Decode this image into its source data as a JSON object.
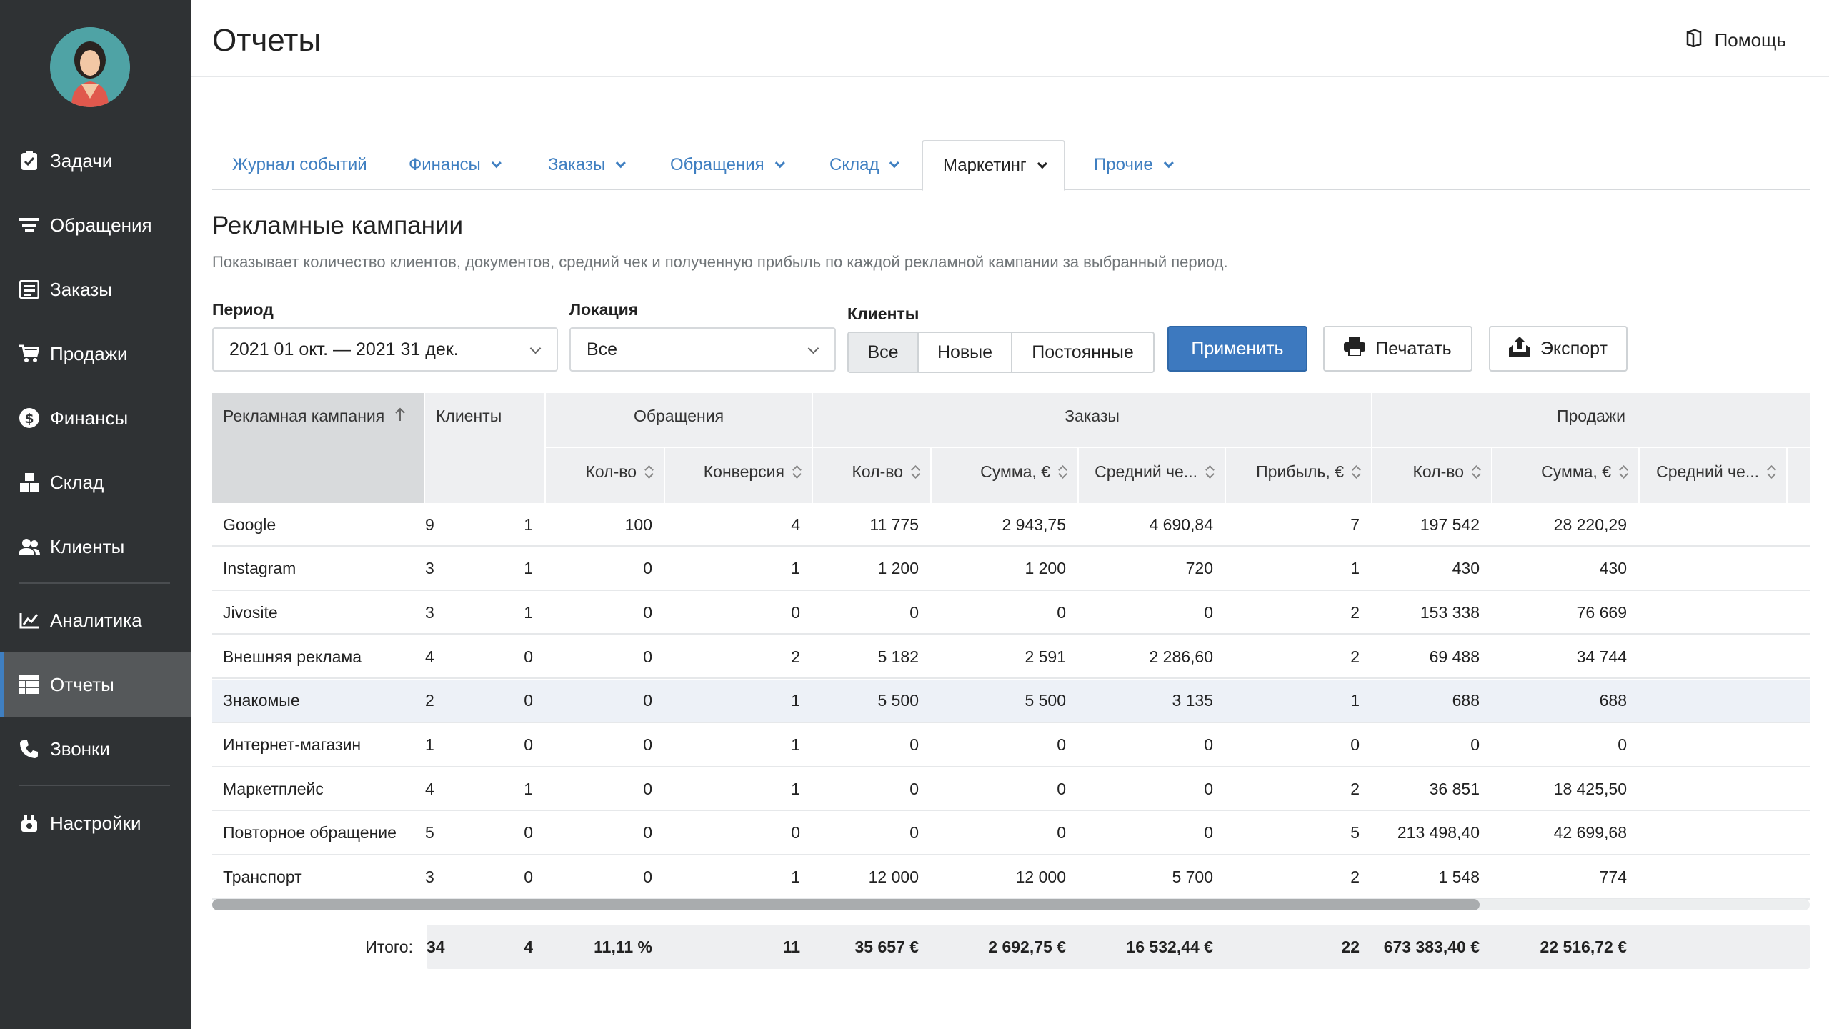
{
  "header": {
    "title": "Отчеты",
    "help_label": "Помощь"
  },
  "sidebar": {
    "items": [
      {
        "label": "Задачи",
        "icon": "tasks-icon"
      },
      {
        "label": "Обращения",
        "icon": "inbox-icon"
      },
      {
        "label": "Заказы",
        "icon": "orders-icon"
      },
      {
        "label": "Продажи",
        "icon": "cart-icon"
      },
      {
        "label": "Финансы",
        "icon": "dollar-icon"
      },
      {
        "label": "Склад",
        "icon": "boxes-icon"
      },
      {
        "label": "Клиенты",
        "icon": "users-icon"
      },
      {
        "label": "Аналитика",
        "icon": "chart-icon"
      },
      {
        "label": "Отчеты",
        "icon": "table-icon",
        "active": true
      },
      {
        "label": "Звонки",
        "icon": "phone-icon"
      },
      {
        "label": "Настройки",
        "icon": "settings-icon"
      }
    ]
  },
  "tabs": [
    {
      "label": "Журнал событий",
      "dropdown": false
    },
    {
      "label": "Финансы",
      "dropdown": true
    },
    {
      "label": "Заказы",
      "dropdown": true
    },
    {
      "label": "Обращения",
      "dropdown": true
    },
    {
      "label": "Склад",
      "dropdown": true
    },
    {
      "label": "Маркетинг",
      "dropdown": true,
      "active": true
    },
    {
      "label": "Прочие",
      "dropdown": true
    }
  ],
  "report": {
    "title": "Рекламные кампании",
    "description": "Показывает количество клиентов, документов, средний чек и полученную прибыль по каждой рекламной кампании за выбранный период."
  },
  "filters": {
    "period_label": "Период",
    "period_value": "2021 01 окт. — 2021 31 дек.",
    "location_label": "Локация",
    "location_value": "Все",
    "clients_label": "Клиенты",
    "clients_options": [
      "Все",
      "Новые",
      "Постоянные"
    ],
    "clients_selected": "Все",
    "apply_label": "Применить",
    "print_label": "Печатать",
    "export_label": "Экспорт"
  },
  "table": {
    "group_headers": {
      "campaign": "Рекламная кампания",
      "clients": "Клиенты",
      "appeals": "Обращения",
      "orders": "Заказы",
      "sales": "Продажи"
    },
    "sub_headers": {
      "appeals_count": "Кол-во",
      "appeals_conversion": "Конверсия",
      "orders_count": "Кол-во",
      "orders_sum": "Сумма, €",
      "orders_avg": "Средний че...",
      "orders_profit": "Прибыль, €",
      "sales_count": "Кол-во",
      "sales_sum": "Сумма, €",
      "sales_avg": "Средний че..."
    },
    "rows": [
      [
        "Google",
        "9",
        "1",
        "100",
        "4",
        "11 775",
        "2 943,75",
        "4 690,84",
        "7",
        "197 542",
        "28 220,29"
      ],
      [
        "Instagram",
        "3",
        "1",
        "0",
        "1",
        "1 200",
        "1 200",
        "720",
        "1",
        "430",
        "430"
      ],
      [
        "Jivosite",
        "3",
        "1",
        "0",
        "0",
        "0",
        "0",
        "0",
        "2",
        "153 338",
        "76 669"
      ],
      [
        "Внешняя реклама",
        "4",
        "0",
        "0",
        "2",
        "5 182",
        "2 591",
        "2 286,60",
        "2",
        "69 488",
        "34 744"
      ],
      [
        "Знакомые",
        "2",
        "0",
        "0",
        "1",
        "5 500",
        "5 500",
        "3 135",
        "1",
        "688",
        "688"
      ],
      [
        "Интернет-магазин",
        "1",
        "0",
        "0",
        "1",
        "0",
        "0",
        "0",
        "0",
        "0",
        "0"
      ],
      [
        "Маркетплейс",
        "4",
        "1",
        "0",
        "1",
        "0",
        "0",
        "0",
        "2",
        "36 851",
        "18 425,50"
      ],
      [
        "Повторное обращение",
        "5",
        "0",
        "0",
        "0",
        "0",
        "0",
        "0",
        "5",
        "213 498,40",
        "42 699,68"
      ],
      [
        "Транспорт",
        "3",
        "0",
        "0",
        "1",
        "12 000",
        "12 000",
        "5 700",
        "2",
        "1 548",
        "774"
      ]
    ],
    "total_label": "Итого:",
    "totals": [
      "34",
      "4",
      "11,11 %",
      "11",
      "35 657 €",
      "2 692,75 €",
      "16 532,44 €",
      "22",
      "673 383,40 €",
      "22 516,72 €"
    ]
  },
  "colors": {
    "accent": "#3d79bf",
    "sidebar": "#2f3234",
    "active_row": "#edf1f7"
  }
}
